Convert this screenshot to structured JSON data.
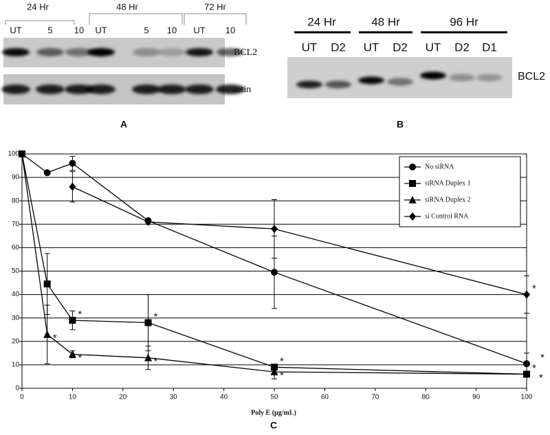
{
  "panel_a": {
    "label": "A",
    "time_groups": [
      "24 Hr",
      "48 Hr",
      "72 Hr"
    ],
    "lanes": [
      "UT",
      "5",
      "10",
      "UT",
      "5",
      "10",
      "UT",
      "10"
    ],
    "blots": [
      "BCL2",
      "actin"
    ]
  },
  "panel_b": {
    "label": "B",
    "time_groups": [
      "24 Hr",
      "48 Hr",
      "96 Hr"
    ],
    "lanes": [
      "UT",
      "D2",
      "UT",
      "D2",
      "UT",
      "D2",
      "D1"
    ],
    "blots": [
      "BCL2"
    ]
  },
  "chart_data": {
    "type": "line",
    "label": "C",
    "x_label": "Poly E (μg/mL)",
    "xlim": [
      0,
      100
    ],
    "xticks": [
      0,
      10,
      20,
      30,
      40,
      50,
      60,
      70,
      80,
      90,
      100
    ],
    "ylim": [
      0,
      100
    ],
    "yticks": [
      0,
      10,
      20,
      30,
      40,
      50,
      60,
      70,
      80,
      90,
      100
    ],
    "grid": true,
    "legend": "top-right",
    "series": [
      {
        "name": "No siRNA",
        "marker": "circle",
        "color": "#000000",
        "x": [
          0,
          5,
          10,
          25,
          50,
          100
        ],
        "values": [
          100,
          92,
          96,
          71.5,
          49.5,
          10.5
        ],
        "errors": [
          0,
          0,
          3,
          0.5,
          15.5,
          4.5
        ],
        "annotations": [
          null,
          null,
          null,
          null,
          null,
          "*"
        ]
      },
      {
        "name": "siRNA Duplex 1",
        "marker": "square",
        "color": "#000000",
        "x": [
          0,
          5,
          10,
          25,
          50,
          100
        ],
        "values": [
          100,
          44.5,
          29,
          28,
          9,
          6
        ],
        "errors": [
          0,
          13,
          4,
          12,
          1,
          1
        ],
        "annotations": [
          null,
          null,
          "*",
          "*",
          "*",
          "*"
        ]
      },
      {
        "name": "siRNA Duplex 2",
        "marker": "triangle",
        "color": "#000000",
        "x": [
          0,
          5,
          10,
          25,
          50,
          100
        ],
        "values": [
          100,
          23,
          14.5,
          13,
          7,
          6
        ],
        "errors": [
          0,
          12.5,
          1.5,
          5,
          3,
          1
        ],
        "annotations": [
          null,
          "*",
          "*",
          "*",
          "*",
          "*"
        ]
      },
      {
        "name": "si Control RNA",
        "marker": "diamond",
        "color": "#000000",
        "x": [
          10,
          25,
          50,
          100
        ],
        "values": [
          86,
          71,
          68,
          40
        ],
        "errors": [
          6.5,
          1,
          12.5,
          8
        ],
        "annotations": [
          null,
          null,
          null,
          "*"
        ]
      }
    ]
  }
}
